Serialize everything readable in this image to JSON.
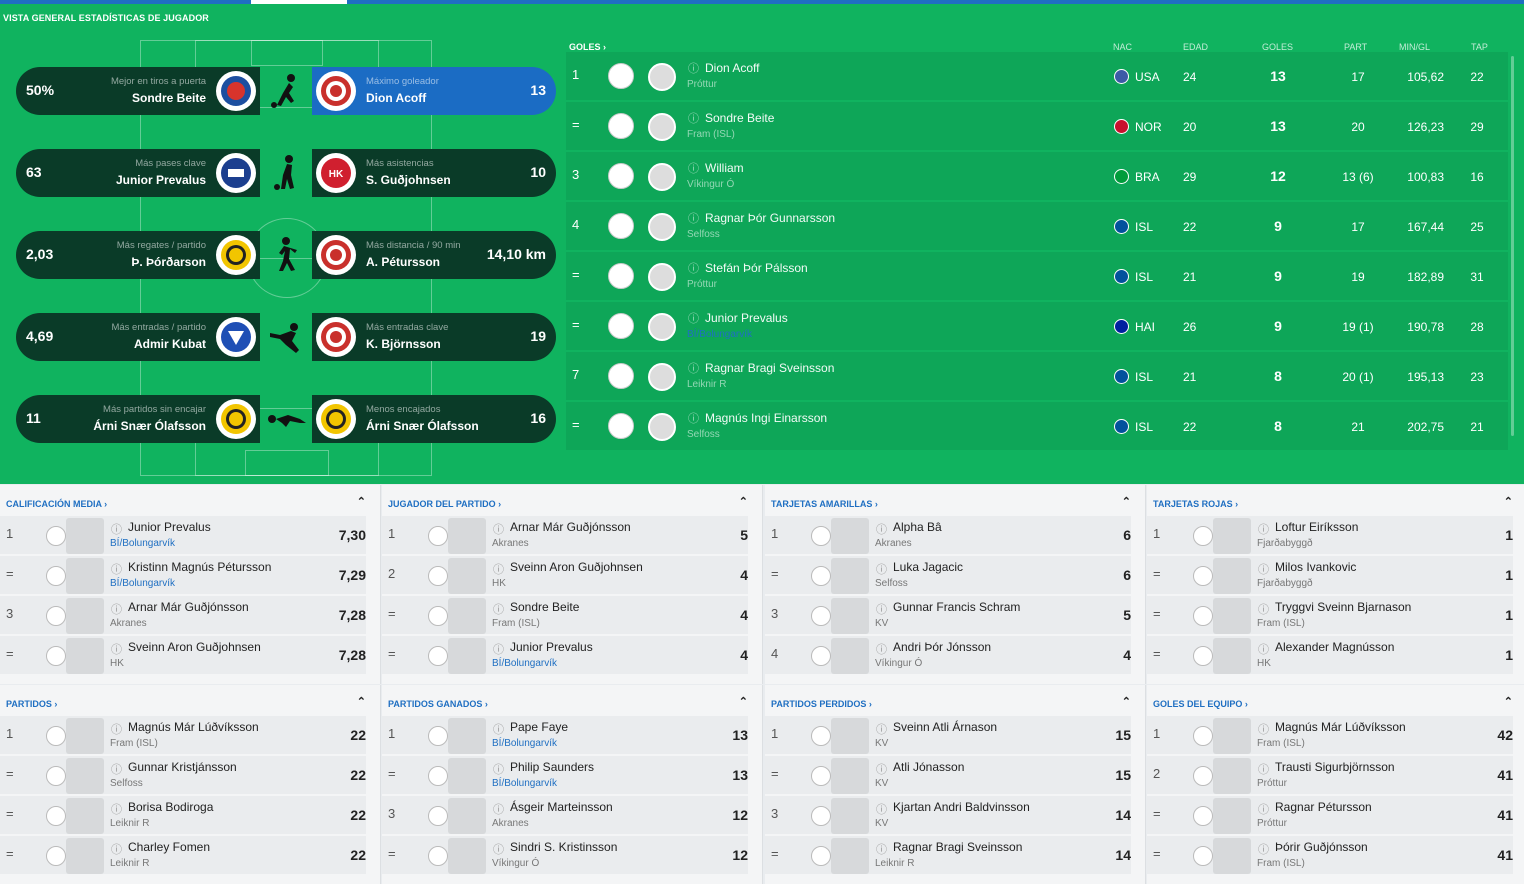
{
  "page_title": "VISTA GENERAL ESTADÍSTICAS DE JUGADOR",
  "highlights": [
    {
      "left_value": "50%",
      "left_category": "Mejor en tiros a puerta",
      "left_player": "Sondre Beite",
      "right_category": "Máximo goleador",
      "right_player": "Dion Acoff",
      "right_value": "13"
    },
    {
      "left_value": "63",
      "left_category": "Más pases clave",
      "left_player": "Junior Prevalus",
      "right_category": "Más asistencias",
      "right_player": "S. Guðjohnsen",
      "right_value": "10"
    },
    {
      "left_value": "2,03",
      "left_category": "Más regates / partido",
      "left_player": "Þ. Þórðarson",
      "right_category": "Más distancia / 90 min",
      "right_player": "A. Pétursson",
      "right_value": "14,10 km"
    },
    {
      "left_value": "4,69",
      "left_category": "Más entradas / partido",
      "left_player": "Admir Kubat",
      "right_category": "Más entradas clave",
      "right_player": "K. Björnsson",
      "right_value": "19"
    },
    {
      "left_value": "11",
      "left_category": "Más partidos sin encajar",
      "left_player": "Árni Snær Ólafsson",
      "right_category": "Menos encajados",
      "right_player": "Árni Snær Ólafsson",
      "right_value": "16"
    }
  ],
  "scorers": {
    "title": "GOLES",
    "headers": {
      "nac": "NAC",
      "edad": "EDAD",
      "goles": "GOLES",
      "part": "PART",
      "min": "MIN/GL",
      "tap": "TAP"
    },
    "rows": [
      {
        "pos": "1",
        "name": "Dion Acoff",
        "club": "Próttur",
        "nac": "USA",
        "edad": "24",
        "goles": "13",
        "part": "17",
        "min": "105,62",
        "tap": "22",
        "flag": "#3c5aa6"
      },
      {
        "pos": "=",
        "name": "Sondre Beite",
        "club": "Fram (ISL)",
        "nac": "NOR",
        "edad": "20",
        "goles": "13",
        "part": "20",
        "min": "126,23",
        "tap": "29",
        "flag": "#c8102e"
      },
      {
        "pos": "3",
        "name": "William",
        "club": "Víkingur Ó",
        "nac": "BRA",
        "edad": "29",
        "goles": "12",
        "part": "13 (6)",
        "min": "100,83",
        "tap": "16",
        "flag": "#009c3b"
      },
      {
        "pos": "4",
        "name": "Ragnar Þór Gunnarsson",
        "club": "Selfoss",
        "nac": "ISL",
        "edad": "22",
        "goles": "9",
        "part": "17",
        "min": "167,44",
        "tap": "25",
        "flag": "#02529c"
      },
      {
        "pos": "=",
        "name": "Stefán Þór Pálsson",
        "club": "Próttur",
        "nac": "ISL",
        "edad": "21",
        "goles": "9",
        "part": "19",
        "min": "182,89",
        "tap": "31",
        "flag": "#02529c"
      },
      {
        "pos": "=",
        "name": "Junior Prevalus",
        "club": "BÍ/Bolungarvík",
        "nac": "HAI",
        "edad": "26",
        "goles": "9",
        "part": "19 (1)",
        "min": "190,78",
        "tap": "28",
        "flag": "#00209f"
      },
      {
        "pos": "7",
        "name": "Ragnar Bragi Sveinsson",
        "club": "Leiknir R",
        "nac": "ISL",
        "edad": "21",
        "goles": "8",
        "part": "20 (1)",
        "min": "195,13",
        "tap": "23",
        "flag": "#02529c"
      },
      {
        "pos": "=",
        "name": "Magnús Ingi Einarsson",
        "club": "Selfoss",
        "nac": "ISL",
        "edad": "22",
        "goles": "8",
        "part": "21",
        "min": "202,75",
        "tap": "21",
        "flag": "#02529c"
      }
    ]
  },
  "panels": [
    {
      "title": "CALIFICACIÓN MEDIA ›",
      "rows": [
        {
          "pos": "1",
          "name": "Junior Prevalus",
          "club": "BÍ/Bolungarvík",
          "val": "7,30"
        },
        {
          "pos": "=",
          "name": "Kristinn Magnús Pétursson",
          "club": "BÍ/Bolungarvík",
          "val": "7,29"
        },
        {
          "pos": "3",
          "name": "Arnar Már Guðjónsson",
          "club": "Akranes",
          "val": "7,28"
        },
        {
          "pos": "=",
          "name": "Sveinn Aron Guðjohnsen",
          "club": "HK",
          "val": "7,28"
        }
      ]
    },
    {
      "title": "JUGADOR DEL PARTIDO ›",
      "rows": [
        {
          "pos": "1",
          "name": "Arnar Már Guðjónsson",
          "club": "Akranes",
          "val": "5"
        },
        {
          "pos": "2",
          "name": "Sveinn Aron Guðjohnsen",
          "club": "HK",
          "val": "4"
        },
        {
          "pos": "=",
          "name": "Sondre Beite",
          "club": "Fram (ISL)",
          "val": "4"
        },
        {
          "pos": "=",
          "name": "Junior Prevalus",
          "club": "BÍ/Bolungarvík",
          "val": "4"
        }
      ]
    },
    {
      "title": "TARJETAS AMARILLAS ›",
      "rows": [
        {
          "pos": "1",
          "name": "Alpha Bâ",
          "club": "Akranes",
          "val": "6"
        },
        {
          "pos": "=",
          "name": "Luka Jagacic",
          "club": "Selfoss",
          "val": "6"
        },
        {
          "pos": "3",
          "name": "Gunnar Francis Schram",
          "club": "KV",
          "val": "5"
        },
        {
          "pos": "4",
          "name": "Andri Þór Jónsson",
          "club": "Víkingur Ó",
          "val": "4"
        }
      ]
    },
    {
      "title": "TARJETAS ROJAS ›",
      "rows": [
        {
          "pos": "1",
          "name": "Loftur Eiríksson",
          "club": "Fjarðabyggð",
          "val": "1"
        },
        {
          "pos": "=",
          "name": "Milos Ivankovic",
          "club": "Fjarðabyggð",
          "val": "1"
        },
        {
          "pos": "=",
          "name": "Tryggvi Sveinn Bjarnason",
          "club": "Fram (ISL)",
          "val": "1"
        },
        {
          "pos": "=",
          "name": "Alexander Magnússon",
          "club": "HK",
          "val": "1"
        }
      ]
    },
    {
      "title": "PARTIDOS ›",
      "rows": [
        {
          "pos": "1",
          "name": "Magnús Már Lúðvíksson",
          "club": "Fram (ISL)",
          "val": "22"
        },
        {
          "pos": "=",
          "name": "Gunnar Kristjánsson",
          "club": "Selfoss",
          "val": "22"
        },
        {
          "pos": "=",
          "name": "Borisa Bodiroga",
          "club": "Leiknir R",
          "val": "22"
        },
        {
          "pos": "=",
          "name": "Charley Fomen",
          "club": "Leiknir R",
          "val": "22"
        }
      ]
    },
    {
      "title": "PARTIDOS GANADOS ›",
      "rows": [
        {
          "pos": "1",
          "name": "Pape Faye",
          "club": "BÍ/Bolungarvík",
          "val": "13"
        },
        {
          "pos": "=",
          "name": "Philip Saunders",
          "club": "BÍ/Bolungarvík",
          "val": "13"
        },
        {
          "pos": "3",
          "name": "Ásgeir Marteinsson",
          "club": "Akranes",
          "val": "12"
        },
        {
          "pos": "=",
          "name": "Sindri S. Kristinsson",
          "club": "Víkingur Ó",
          "val": "12"
        }
      ]
    },
    {
      "title": "PARTIDOS PERDIDOS ›",
      "rows": [
        {
          "pos": "1",
          "name": "Sveinn Atli Árnason",
          "club": "KV",
          "val": "15"
        },
        {
          "pos": "=",
          "name": "Atli Jónasson",
          "club": "KV",
          "val": "15"
        },
        {
          "pos": "3",
          "name": "Kjartan Andri Baldvinsson",
          "club": "KV",
          "val": "14"
        },
        {
          "pos": "=",
          "name": "Ragnar Bragi Sveinsson",
          "club": "Leiknir R",
          "val": "14"
        }
      ]
    },
    {
      "title": "GOLES DEL EQUIPO ›",
      "rows": [
        {
          "pos": "1",
          "name": "Magnús Már Lúðvíksson",
          "club": "Fram (ISL)",
          "val": "42"
        },
        {
          "pos": "2",
          "name": "Trausti Sigurbjörnsson",
          "club": "Próttur",
          "val": "41"
        },
        {
          "pos": "=",
          "name": "Ragnar Pétursson",
          "club": "Próttur",
          "val": "41"
        },
        {
          "pos": "=",
          "name": "Þórir Guðjónsson",
          "club": "Fram (ISL)",
          "val": "41"
        }
      ]
    }
  ],
  "icons": {
    "info": "info-icon",
    "collapse": "chevron-up-icon",
    "figure": "player-silhouette-icon"
  }
}
